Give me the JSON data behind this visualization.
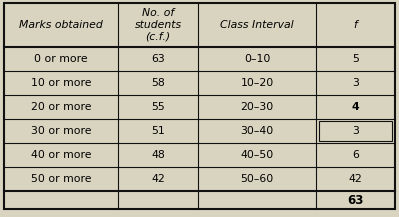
{
  "col_headers": [
    "Marks obtained",
    "No. of\nstudents\n(c.f.)",
    "Class Interval",
    "f"
  ],
  "rows": [
    [
      "0 or more",
      "63",
      "0–10",
      "5"
    ],
    [
      "10 or more",
      "58",
      "10–20",
      "3"
    ],
    [
      "20 or more",
      "55",
      "20–30",
      "4"
    ],
    [
      "30 or more",
      "51",
      "30–40",
      "3"
    ],
    [
      "40 or more",
      "48",
      "40–50",
      "6"
    ],
    [
      "50 or more",
      "42",
      "50–60",
      "42"
    ]
  ],
  "total_row": [
    "",
    "",
    "",
    "63"
  ],
  "boxed_cell_row": 3,
  "boxed_cell_col": 3,
  "bg_color": "#d9d4c0",
  "border_color": "#111111",
  "text_color": "#000000",
  "header_fontsize": 7.8,
  "data_fontsize": 7.8,
  "total_fontsize": 8.5
}
